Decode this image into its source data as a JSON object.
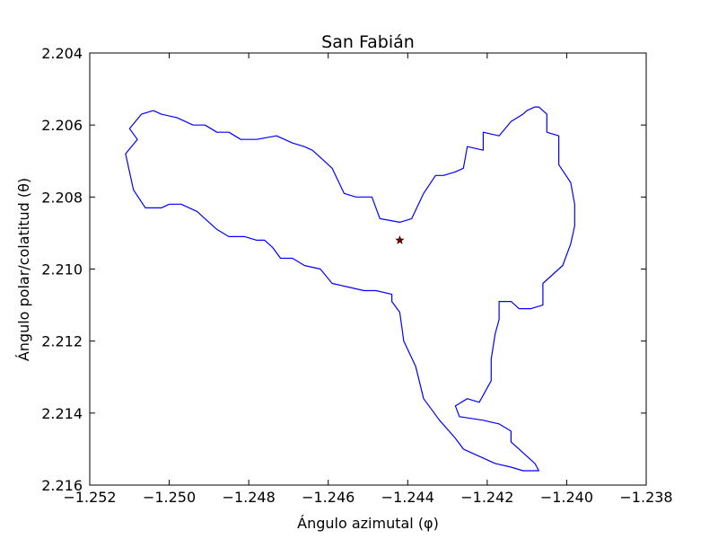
{
  "chart_data": {
    "type": "line",
    "title": "San Fabián",
    "xlabel": "Ángulo azimutal (φ)",
    "ylabel": "Ángulo polar/colatitud (θ)",
    "xlim": [
      -1.252,
      -1.238
    ],
    "ylim": [
      2.204,
      2.216
    ],
    "y_inverted": true,
    "grid": false,
    "x_ticks": [
      -1.252,
      -1.25,
      -1.248,
      -1.246,
      -1.244,
      -1.242,
      -1.24,
      -1.238
    ],
    "x_tick_labels": [
      "−1.252",
      "−1.250",
      "−1.248",
      "−1.246",
      "−1.244",
      "−1.242",
      "−1.240",
      "−1.238"
    ],
    "y_ticks": [
      2.204,
      2.206,
      2.208,
      2.21,
      2.212,
      2.214,
      2.216
    ],
    "y_tick_labels": [
      "2.204",
      "2.206",
      "2.208",
      "2.210",
      "2.212",
      "2.214",
      "2.216"
    ],
    "colors": {
      "boundary": "#0000ff",
      "centroid": "#8b0000",
      "axes": "#000000"
    },
    "series": [
      {
        "kind": "boundary",
        "x": [
          -1.2504,
          -1.2502,
          -1.2498,
          -1.2494,
          -1.2491,
          -1.2488,
          -1.2485,
          -1.2482,
          -1.2478,
          -1.2473,
          -1.2469,
          -1.2466,
          -1.2464,
          -1.2461,
          -1.2459,
          -1.2456,
          -1.2453,
          -1.2449,
          -1.2447,
          -1.2442,
          -1.2439,
          -1.2436,
          -1.2433,
          -1.2431,
          -1.2428,
          -1.2426,
          -1.2425,
          -1.2421,
          -1.2421,
          -1.2417,
          -1.2414,
          -1.2411,
          -1.241,
          -1.2408,
          -1.2407,
          -1.2405,
          -1.2405,
          -1.2402,
          -1.2402,
          -1.2399,
          -1.2398,
          -1.2398,
          -1.2399,
          -1.2401,
          -1.2406,
          -1.2406,
          -1.2409,
          -1.2412,
          -1.2414,
          -1.2417,
          -1.2417,
          -1.2418,
          -1.2419,
          -1.2419,
          -1.2422,
          -1.2425,
          -1.2428,
          -1.2427,
          -1.2421,
          -1.2417,
          -1.2414,
          -1.2414,
          -1.2408,
          -1.2407,
          -1.2411,
          -1.2414,
          -1.2418,
          -1.2422,
          -1.2426,
          -1.2428,
          -1.2432,
          -1.2434,
          -1.2436,
          -1.2438,
          -1.2441,
          -1.2442,
          -1.2444,
          -1.2444,
          -1.2448,
          -1.2451,
          -1.2455,
          -1.2459,
          -1.2462,
          -1.2466,
          -1.2469,
          -1.2472,
          -1.2474,
          -1.2476,
          -1.2478,
          -1.2481,
          -1.2485,
          -1.2488,
          -1.2491,
          -1.2493,
          -1.2497,
          -1.25,
          -1.2502,
          -1.2506,
          -1.2509,
          -1.2511,
          -1.2508,
          -1.251,
          -1.2507,
          -1.2504
        ],
        "y": [
          2.2056,
          2.2057,
          2.2058,
          2.206,
          2.206,
          2.2062,
          2.2062,
          2.2064,
          2.2064,
          2.2063,
          2.2065,
          2.2066,
          2.2067,
          2.207,
          2.2072,
          2.2079,
          2.208,
          2.208,
          2.2086,
          2.2087,
          2.2086,
          2.2079,
          2.2074,
          2.2074,
          2.2073,
          2.2072,
          2.2066,
          2.2067,
          2.2062,
          2.2063,
          2.2059,
          2.2057,
          2.2056,
          2.2055,
          2.2055,
          2.2057,
          2.2062,
          2.2063,
          2.2071,
          2.2076,
          2.2082,
          2.2088,
          2.2093,
          2.2099,
          2.2104,
          2.211,
          2.2111,
          2.2111,
          2.2109,
          2.2109,
          2.2114,
          2.2118,
          2.2125,
          2.2131,
          2.2137,
          2.2136,
          2.2138,
          2.2141,
          2.2142,
          2.2143,
          2.2145,
          2.2148,
          2.2154,
          2.2156,
          2.2156,
          2.2155,
          2.2154,
          2.2152,
          2.215,
          2.2147,
          2.2142,
          2.2139,
          2.2136,
          2.2127,
          2.212,
          2.2112,
          2.2109,
          2.2107,
          2.2106,
          2.2106,
          2.2105,
          2.2104,
          2.21,
          2.2099,
          2.2097,
          2.2097,
          2.2094,
          2.2092,
          2.2092,
          2.2091,
          2.2091,
          2.2089,
          2.2086,
          2.2084,
          2.2082,
          2.2082,
          2.2083,
          2.2083,
          2.2078,
          2.2068,
          2.2064,
          2.2061,
          2.2057,
          2.2056
        ]
      },
      {
        "kind": "centroid",
        "x": [
          -1.2442
        ],
        "y": [
          2.2092
        ]
      }
    ]
  }
}
